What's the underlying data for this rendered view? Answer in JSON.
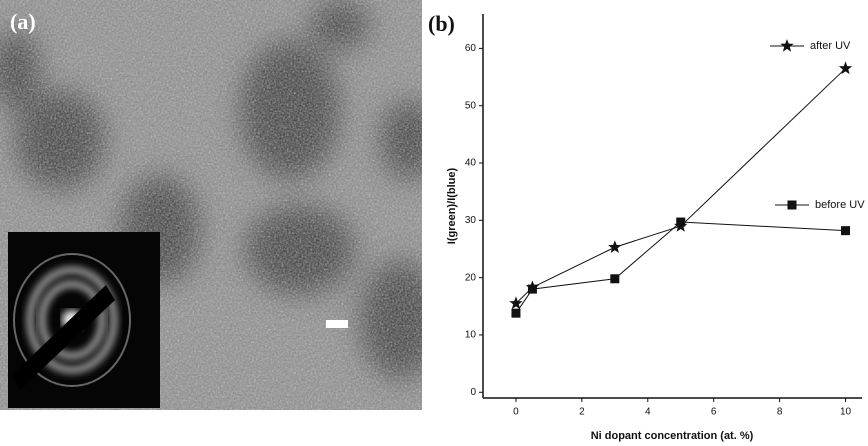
{
  "panel_labels": [
    "(a)",
    "(b)"
  ],
  "chart_data": {
    "type": "line",
    "x_label": "Ni dopant concentration (at. %)",
    "y_label": "I(green)/I(blue)",
    "x": [
      0,
      0.5,
      3,
      5,
      10
    ],
    "series": [
      {
        "name": "after UV",
        "color": "#111111",
        "marker": "star",
        "values": [
          15.5,
          18.3,
          25.3,
          29,
          56.5
        ]
      },
      {
        "name": "before UV",
        "color": "#111111",
        "marker": "square",
        "values": [
          13.8,
          18,
          19.8,
          29.7,
          28.2
        ]
      }
    ],
    "xlim": [
      -1,
      10.5
    ],
    "xticks": [
      0,
      2,
      4,
      6,
      8,
      10
    ],
    "ylim": [
      -1,
      66
    ],
    "yticks": [
      0,
      10,
      20,
      30,
      40,
      50,
      60
    ],
    "grid": false
  }
}
